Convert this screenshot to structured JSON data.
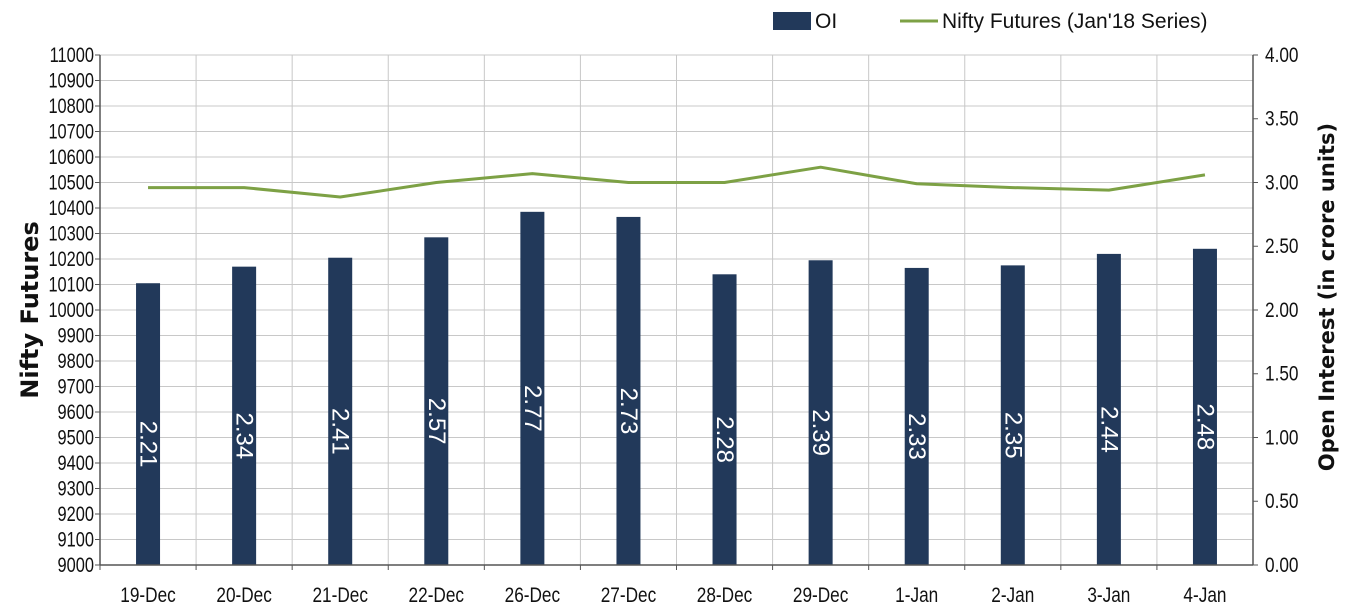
{
  "chart_data": {
    "type": "bar",
    "categories": [
      "19-Dec",
      "20-Dec",
      "21-Dec",
      "22-Dec",
      "26-Dec",
      "27-Dec",
      "28-Dec",
      "29-Dec",
      "1-Jan",
      "2-Jan",
      "3-Jan",
      "4-Jan"
    ],
    "series": [
      {
        "name": "OI",
        "type": "bar",
        "axis": "right",
        "color": "#22395a",
        "values": [
          2.21,
          2.34,
          2.41,
          2.57,
          2.77,
          2.73,
          2.28,
          2.39,
          2.33,
          2.35,
          2.44,
          2.48
        ],
        "data_labels": [
          "2.21",
          "2.34",
          "2.41",
          "2.57",
          "2.77",
          "2.73",
          "2.28",
          "2.39",
          "2.33",
          "2.35",
          "2.44",
          "2.48"
        ]
      },
      {
        "name": "Nifty Futures (Jan'18 Series)",
        "type": "line",
        "axis": "left",
        "color": "#7da145",
        "values": [
          10480,
          10480,
          10443,
          10500,
          10535,
          10500,
          10500,
          10560,
          10495,
          10480,
          10470,
          10530
        ]
      }
    ],
    "ylabel": "Nifty Futures",
    "ylabel_right": "Open Interest (in crore units)",
    "ylim": [
      9000,
      11000
    ],
    "ylim_right": [
      0,
      4
    ],
    "yticks": [
      "11000",
      "10900",
      "10800",
      "10700",
      "10600",
      "10500",
      "10400",
      "10300",
      "10200",
      "10100",
      "10000",
      "9900",
      "9800",
      "9700",
      "9600",
      "9500",
      "9400",
      "9300",
      "9200",
      "9100",
      "9000"
    ],
    "yticks_right": [
      "4.00",
      "3.50",
      "3.00",
      "2.50",
      "2.00",
      "1.50",
      "1.00",
      "0.50",
      "0.00"
    ],
    "grid": true,
    "legend_position": "top-right"
  }
}
